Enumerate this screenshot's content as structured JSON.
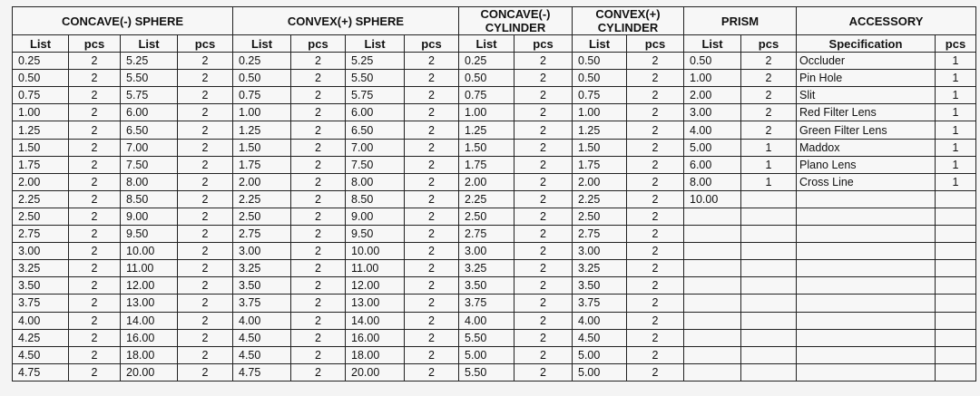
{
  "groups": [
    "CONCAVE(-)  SPHERE",
    "CONVEX(+) SPHERE",
    "CONCAVE(-) CYLINDER",
    "CONVEX(+) CYLINDER",
    "PRISM",
    "ACCESSORY"
  ],
  "subheaders": [
    "List",
    "pcs",
    "List",
    "pcs",
    "List",
    "pcs",
    "List",
    "pcs",
    "List",
    "pcs",
    "List",
    "pcs",
    "List",
    "pcs",
    "Specification",
    "pcs"
  ],
  "rows": [
    [
      "0.25",
      "2",
      "5.25",
      "2",
      "0.25",
      "2",
      "5.25",
      "2",
      "0.25",
      "2",
      "0.50",
      "2",
      "0.50",
      "2",
      "Occluder",
      "1"
    ],
    [
      "0.50",
      "2",
      "5.50",
      "2",
      "0.50",
      "2",
      "5.50",
      "2",
      "0.50",
      "2",
      "0.50",
      "2",
      "1.00",
      "2",
      "Pin Hole",
      "1"
    ],
    [
      "0.75",
      "2",
      "5.75",
      "2",
      "0.75",
      "2",
      "5.75",
      "2",
      "0.75",
      "2",
      "0.75",
      "2",
      "2.00",
      "2",
      "Slit",
      "1"
    ],
    [
      "1.00",
      "2",
      "6.00",
      "2",
      "1.00",
      "2",
      "6.00",
      "2",
      "1.00",
      "2",
      "1.00",
      "2",
      "3.00",
      "2",
      "Red Filter Lens",
      "1"
    ],
    [
      "1.25",
      "2",
      "6.50",
      "2",
      "1.25",
      "2",
      "6.50",
      "2",
      "1.25",
      "2",
      "1.25",
      "2",
      "4.00",
      "2",
      "Green Filter Lens",
      "1"
    ],
    [
      "1.50",
      "2",
      "7.00",
      "2",
      "1.50",
      "2",
      "7.00",
      "2",
      "1.50",
      "2",
      "1.50",
      "2",
      "5.00",
      "1",
      "Maddox",
      "1"
    ],
    [
      "1.75",
      "2",
      "7.50",
      "2",
      "1.75",
      "2",
      "7.50",
      "2",
      "1.75",
      "2",
      "1.75",
      "2",
      "6.00",
      "1",
      "Plano Lens",
      "1"
    ],
    [
      "2.00",
      "2",
      "8.00",
      "2",
      "2.00",
      "2",
      "8.00",
      "2",
      "2.00",
      "2",
      "2.00",
      "2",
      "8.00",
      "1",
      "Cross Line",
      "1"
    ],
    [
      "2.25",
      "2",
      "8.50",
      "2",
      "2.25",
      "2",
      "8.50",
      "2",
      "2.25",
      "2",
      "2.25",
      "2",
      "10.00",
      "",
      "",
      ""
    ],
    [
      "2.50",
      "2",
      "9.00",
      "2",
      "2.50",
      "2",
      "9.00",
      "2",
      "2.50",
      "2",
      "2.50",
      "2",
      "",
      "",
      "",
      ""
    ],
    [
      "2.75",
      "2",
      "9.50",
      "2",
      "2.75",
      "2",
      "9.50",
      "2",
      "2.75",
      "2",
      "2.75",
      "2",
      "",
      "",
      "",
      ""
    ],
    [
      "3.00",
      "2",
      "10.00",
      "2",
      "3.00",
      "2",
      "10.00",
      "2",
      "3.00",
      "2",
      "3.00",
      "2",
      "",
      "",
      "",
      ""
    ],
    [
      "3.25",
      "2",
      "11.00",
      "2",
      "3.25",
      "2",
      "11.00",
      "2",
      "3.25",
      "2",
      "3.25",
      "2",
      "",
      "",
      "",
      ""
    ],
    [
      "3.50",
      "2",
      "12.00",
      "2",
      "3.50",
      "2",
      "12.00",
      "2",
      "3.50",
      "2",
      "3.50",
      "2",
      "",
      "",
      "",
      ""
    ],
    [
      "3.75",
      "2",
      "13.00",
      "2",
      "3.75",
      "2",
      "13.00",
      "2",
      "3.75",
      "2",
      "3.75",
      "2",
      "",
      "",
      "",
      ""
    ],
    [
      "4.00",
      "2",
      "14.00",
      "2",
      "4.00",
      "2",
      "14.00",
      "2",
      "4.00",
      "2",
      "4.00",
      "2",
      "",
      "",
      "",
      ""
    ],
    [
      "4.25",
      "2",
      "16.00",
      "2",
      "4.50",
      "2",
      "16.00",
      "2",
      "5.50",
      "2",
      "4.50",
      "2",
      "",
      "",
      "",
      ""
    ],
    [
      "4.50",
      "2",
      "18.00",
      "2",
      "4.50",
      "2",
      "18.00",
      "2",
      "5.00",
      "2",
      "5.00",
      "2",
      "",
      "",
      "",
      ""
    ],
    [
      "4.75",
      "2",
      "20.00",
      "2",
      "4.75",
      "2",
      "20.00",
      "2",
      "5.50",
      "2",
      "5.00",
      "2",
      "",
      "",
      "",
      ""
    ]
  ]
}
